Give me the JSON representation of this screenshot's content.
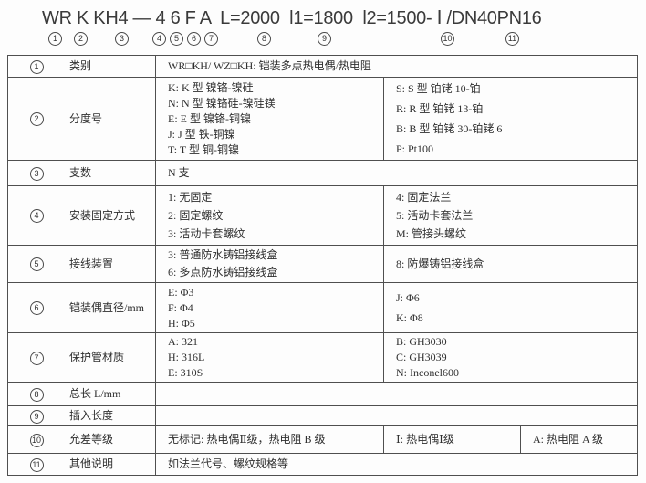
{
  "header": {
    "model_code": "WR K KH4 — 4 6 F A  L=2000  l1=1800  l2=1500- Ⅰ /DN40PN16",
    "markers": [
      "1",
      "2",
      "3",
      "4",
      "5",
      "6",
      "7",
      "8",
      "9",
      "10",
      "11"
    ]
  },
  "colors": {
    "border": "#4f4f4f",
    "text": "#2f2f2f",
    "background": "#fdfdfd"
  },
  "table": {
    "rows": [
      {
        "no": "1",
        "label": "类别",
        "cells": [
          [
            "WR□KH/ WZ□KH: 铠装多点热电偶/热电阻"
          ]
        ]
      },
      {
        "no": "2",
        "label": "分度号",
        "cells": [
          [
            "K: K 型 镍铬-镍硅",
            "N: N 型 镍铬硅-镍硅镁",
            "E: E 型 镍铬-铜镍",
            "J: J 型 铁-铜镍",
            "T: T 型 铜-铜镍"
          ],
          [
            "S: S 型 铂铑 10-铂",
            "R: R 型 铂铑 13-铂",
            "B: B 型 铂铑 30-铂铑 6",
            "P: Pt100"
          ]
        ]
      },
      {
        "no": "3",
        "label": "支数",
        "cells": [
          [
            "N 支"
          ]
        ]
      },
      {
        "no": "4",
        "label": "安装固定方式",
        "cells": [
          [
            "1: 无固定",
            "2: 固定螺纹",
            "3: 活动卡套螺纹"
          ],
          [
            "4: 固定法兰",
            "5: 活动卡套法兰",
            "M: 管接头螺纹"
          ]
        ]
      },
      {
        "no": "5",
        "label": "接线装置",
        "cells": [
          [
            "3: 普通防水铸铝接线盒",
            "6: 多点防水铸铝接线盒"
          ],
          [
            "8: 防爆铸铝接线盒"
          ]
        ]
      },
      {
        "no": "6",
        "label": "铠装偶直径/mm",
        "cells": [
          [
            "E: Φ3",
            "F: Φ4",
            "H: Φ5"
          ],
          [
            "J: Φ6",
            "K: Φ8"
          ]
        ]
      },
      {
        "no": "7",
        "label": "保护管材质",
        "cells": [
          [
            "A: 321",
            "H: 316L",
            "E: 310S"
          ],
          [
            "B: GH3030",
            "C: GH3039",
            "N: Inconel600"
          ]
        ]
      },
      {
        "no": "8",
        "label": "总长 L/mm",
        "cells": [
          [
            ""
          ]
        ]
      },
      {
        "no": "9",
        "label": "插入长度",
        "cells": [
          [
            ""
          ]
        ]
      },
      {
        "no": "10",
        "label": "允差等级",
        "cells": [
          [
            "无标记: 热电偶Ⅱ级，热电阻 B 级"
          ],
          [
            "Ⅰ: 热电偶Ⅰ级"
          ],
          [
            "A: 热电阻 A 级"
          ]
        ]
      },
      {
        "no": "11",
        "label": "其他说明",
        "cells": [
          [
            "如法兰代号、螺纹规格等"
          ]
        ]
      }
    ]
  }
}
